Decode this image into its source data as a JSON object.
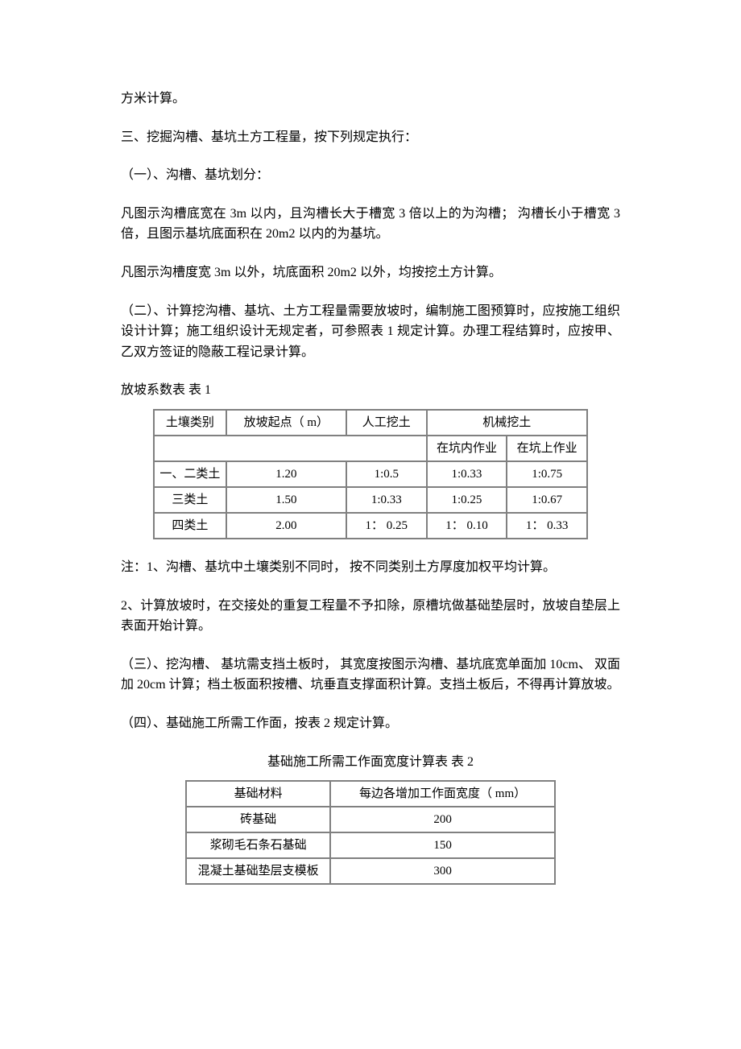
{
  "paragraphs": {
    "p1": "方米计算。",
    "p2": "三、挖掘沟槽、基坑土方工程量，按下列规定执行：",
    "p3": "（一）、沟槽、基坑划分：",
    "p4": "凡图示沟槽底宽在 3m 以内，且沟槽长大于槽宽 3 倍以上的为沟槽；  沟槽长小于槽宽 3 倍，且图示基坑底面积在 20m2 以内的为基坑。",
    "p5": "凡图示沟槽度宽   3m 以外，坑底面积  20m2 以外，均按挖土方计算。",
    "p6": "（二）、计算挖沟槽、基坑、土方工程量需要放坡时，编制施工图预算时，应按施工组织设计计算；施工组织设计无规定者，可参照表      1 规定计算。办理工程结算时，应按甲、乙双方签证的隐蔽工程记录计算。",
    "p7": "放坡系数表   表  1",
    "p8": "注：1、沟槽、基坑中土壤类别不同时，  按不同类别土方厚度加权平均计算。",
    "p9": "2、计算放坡时，在交接处的重复工程量不予扣除，原槽坑做基础垫层时，放坡自垫层上表面开始计算。",
    "p10": "（三）、挖沟槽、  基坑需支挡土板时，  其宽度按图示沟槽、基坑底宽单面加 10cm、  双面加 20cm 计算；档土板面积按槽、坑垂直支撑面积计算。支挡土板后，不得再计算放坡。",
    "p11": "（四）、基础施工所需工作面，按表    2 规定计算。",
    "p12": "基础施工所需工作面宽度计算表 表 2"
  },
  "table1": {
    "header": {
      "col1": "土壤类别",
      "col2": "放坡起点（ m）",
      "col3": "人工挖土",
      "col4": "机械挖土",
      "sub1": "在坑内作业",
      "sub2": "在坑上作业"
    },
    "rows": [
      {
        "soil": "一、二类土",
        "start": "1.20",
        "manual": "1:0.5",
        "mech1": "1:0.33",
        "mech2": "1:0.75"
      },
      {
        "soil": "三类土",
        "start": "1.50",
        "manual": "1:0.33",
        "mech1": "1:0.25",
        "mech2": "1:0.67"
      },
      {
        "soil": "四类土",
        "start": "2.00",
        "manual": "1： 0.25",
        "mech1": "1： 0.10",
        "mech2": "1： 0.33"
      }
    ]
  },
  "table2": {
    "header": {
      "col1": "基础材料",
      "col2": "每边各增加工作面宽度（    mm）"
    },
    "rows": [
      {
        "material": "砖基础",
        "width": "200"
      },
      {
        "material": "浆砌毛石条石基础",
        "width": "150"
      },
      {
        "material": "混凝土基础垫层支模板",
        "width": "300"
      }
    ]
  }
}
